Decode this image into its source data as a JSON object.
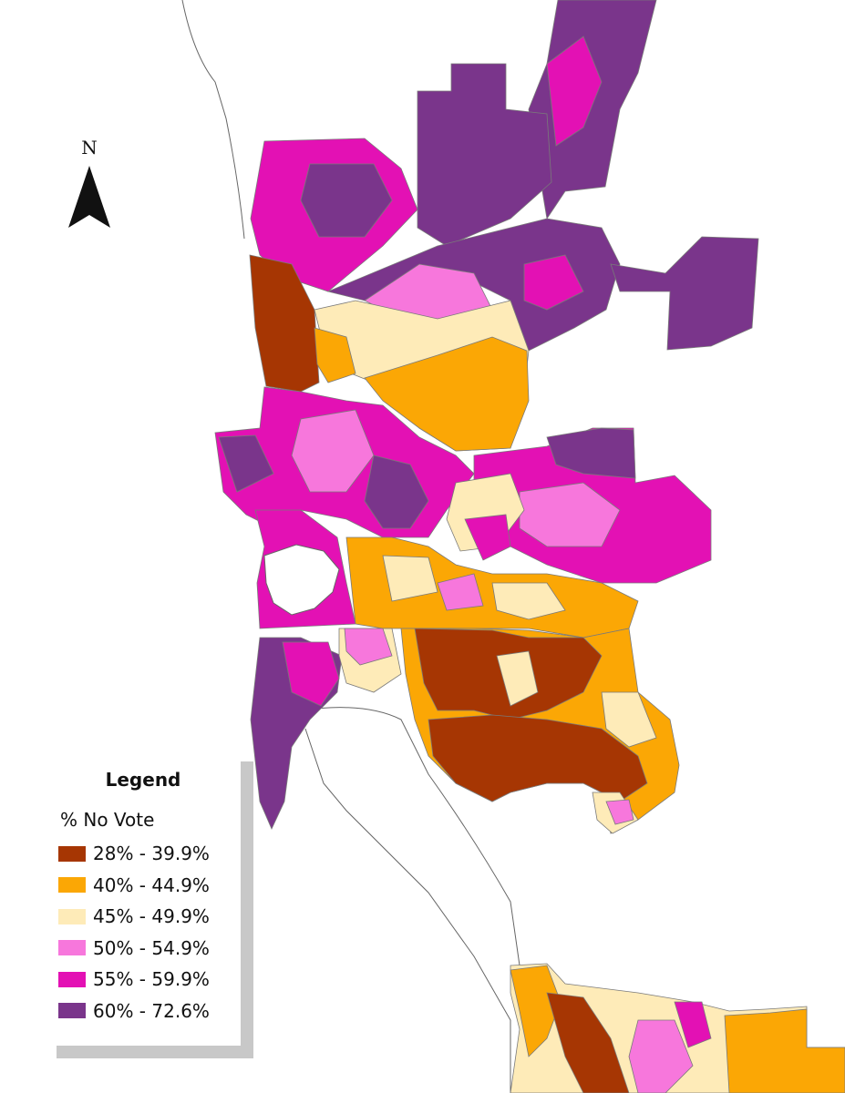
{
  "north_arrow": {
    "label": "N"
  },
  "legend": {
    "title": "Legend",
    "subtitle": "% No Vote",
    "items": [
      {
        "label": "28% - 39.9%",
        "color": "#a63603"
      },
      {
        "label": "40% - 44.9%",
        "color": "#fba705"
      },
      {
        "label": "45% - 49.9%",
        "color": "#feebb8"
      },
      {
        "label": "50% - 54.9%",
        "color": "#f777dc"
      },
      {
        "label": "55% - 59.9%",
        "color": "#e311b4"
      },
      {
        "label": "60% - 72.6%",
        "color": "#7a358b"
      }
    ]
  },
  "colors": {
    "water": "#ffffff",
    "coastline": "#666666",
    "boundary": "#7a7a7a"
  }
}
